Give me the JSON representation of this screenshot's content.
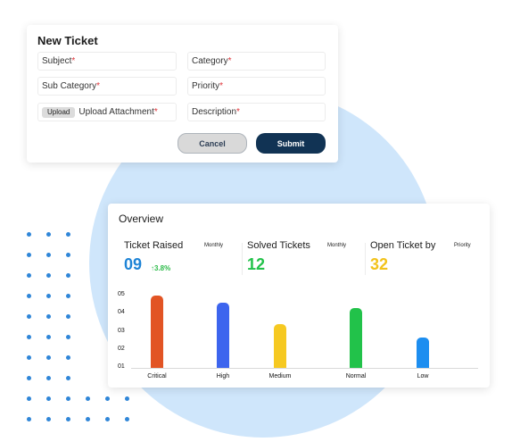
{
  "ticket_form": {
    "title": "New Ticket",
    "fields": [
      {
        "label": "Subject",
        "required_mark": "*"
      },
      {
        "label": "Category",
        "required_mark": "*"
      },
      {
        "label": "Sub Category",
        "required_mark": "*"
      },
      {
        "label": "Priority",
        "required_mark": "*"
      },
      {
        "label": "Upload Attachment",
        "required_mark": "*",
        "button_label": "Upload"
      },
      {
        "label": "Description",
        "required_mark": "*"
      }
    ],
    "cancel_label": "Cancel",
    "submit_label": "Submit",
    "colors": {
      "submit": "#113354",
      "cancel": "#d9d9d9",
      "required": "#e0343a"
    }
  },
  "overview": {
    "title": "Overview",
    "stats": [
      {
        "label": "Ticket Raised",
        "period": "Monthly",
        "value": "09",
        "change": "↑3.8%",
        "value_color": "#1e84d6",
        "change_color": "#2dbb4a"
      },
      {
        "label": "Solved Tickets",
        "period": "Monthly",
        "value": "12",
        "value_color": "#22c24a"
      },
      {
        "label": "Open Ticket by",
        "period": "Priority",
        "value": "32",
        "value_color": "#f2c21a"
      }
    ]
  },
  "chart_data": {
    "type": "bar",
    "categories": [
      "Critical",
      "High",
      "Medium",
      "Normal",
      "Low"
    ],
    "values": [
      5.0,
      4.6,
      3.4,
      4.3,
      2.7
    ],
    "colors": [
      "#e25424",
      "#3d65ee",
      "#f6c921",
      "#22c24a",
      "#1d8ef0"
    ],
    "y_ticks": [
      "05",
      "04",
      "03",
      "02",
      "01"
    ],
    "ylim": [
      1,
      5
    ],
    "title": "",
    "xlabel": "",
    "ylabel": ""
  }
}
